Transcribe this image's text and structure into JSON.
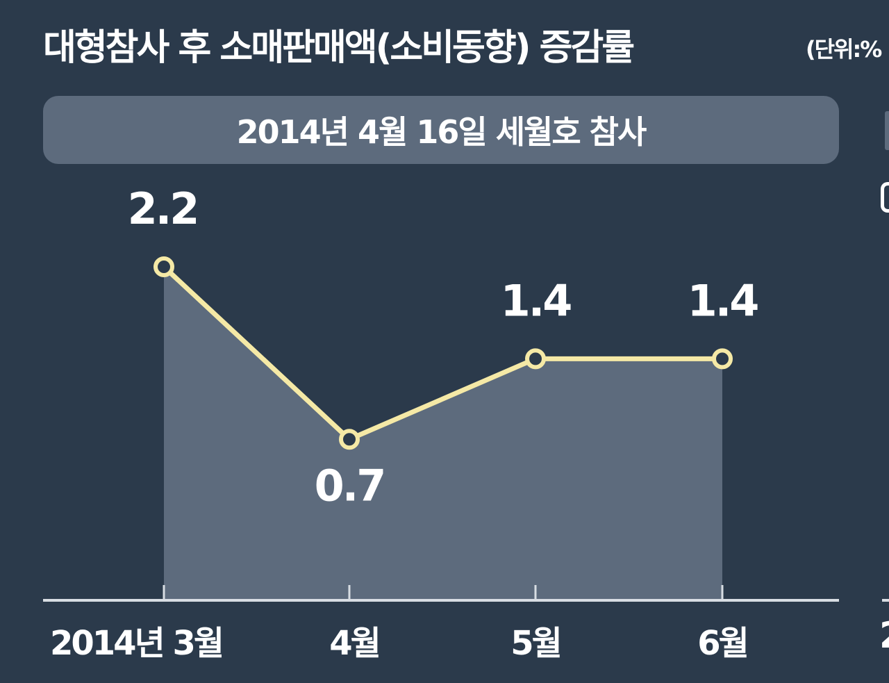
{
  "header": {
    "title": "대형참사 후 소매판매액(소비동향) 증감률",
    "unit": "(단위:%"
  },
  "banner": {
    "label": "2014년 4월 16일 세월호 참사"
  },
  "edge": {
    "next_panel_label": "2"
  },
  "colors": {
    "background": "#2b3a4b",
    "area_fill": "#5d6b7d",
    "line": "#f5e9a6",
    "axis": "#d8dde3",
    "text": "#ffffff"
  },
  "chart_data": {
    "type": "area",
    "title": "대형참사 후 소매판매액(소비동향) 증감률",
    "categories": [
      "2014년 3월",
      "4월",
      "5월",
      "6월"
    ],
    "series": [
      {
        "values": [
          2.2,
          0.7,
          1.4,
          1.4
        ],
        "labels": [
          "2.2",
          "0.7",
          "1.4",
          "1.4"
        ]
      }
    ],
    "ylim": [
      -0.7,
      2.2
    ],
    "grid": false,
    "legend": "none"
  }
}
